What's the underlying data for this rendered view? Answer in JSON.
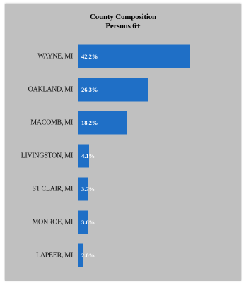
{
  "chart_data": {
    "type": "bar",
    "orientation": "horizontal",
    "title": "County Composition",
    "subtitle": "Persons 6+",
    "categories": [
      "WAYNE, MI",
      "OAKLAND, MI",
      "MACOMB, MI",
      "LIVINGSTON, MI",
      "ST CLAIR, MI",
      "MONROE, MI",
      "LAPEER, MI"
    ],
    "values": [
      42.2,
      26.3,
      18.2,
      4.1,
      3.7,
      3.6,
      2.0
    ],
    "data_labels": [
      "42.2%",
      "26.3%",
      "18.2%",
      "4.1%",
      "3.7%",
      "3.6%",
      "2.0%"
    ],
    "xlim": [
      0,
      60
    ],
    "grid": false,
    "legend": "none",
    "bar_color": "#1f6fc6",
    "background_color": "#c0c0c0"
  }
}
